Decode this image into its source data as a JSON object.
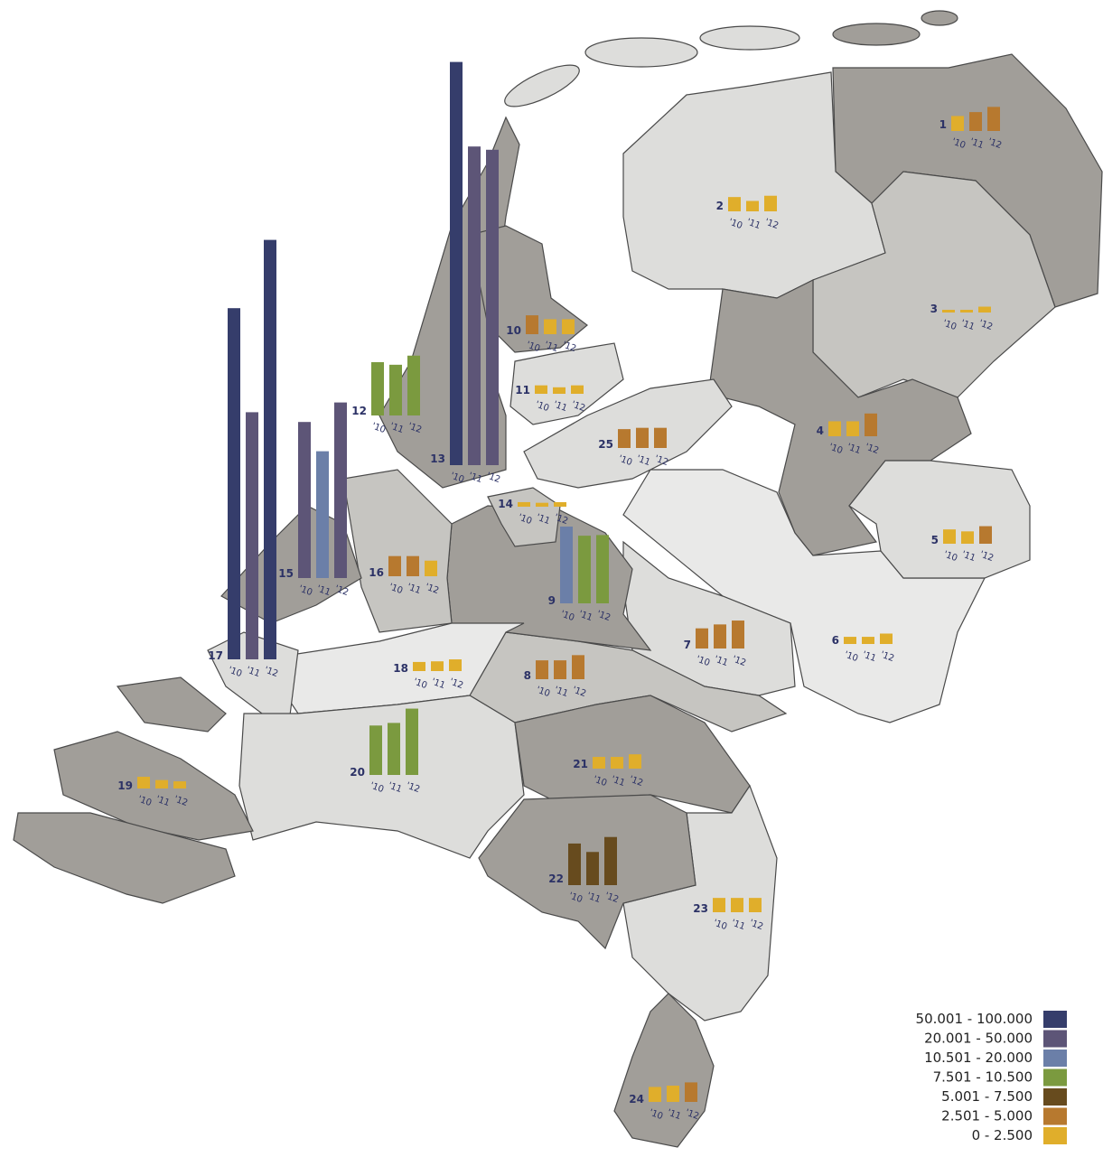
{
  "chart_data": {
    "type": "bar",
    "categories": [
      "'10",
      "'11",
      "'12"
    ],
    "regions": [
      {
        "label": "1",
        "values": [
          2300,
          2900,
          3700
        ]
      },
      {
        "label": "2",
        "values": [
          2200,
          1600,
          2400
        ]
      },
      {
        "label": "3",
        "values": [
          400,
          400,
          900
        ]
      },
      {
        "label": "4",
        "values": [
          2300,
          2300,
          3500
        ]
      },
      {
        "label": "5",
        "values": [
          2200,
          1900,
          2700
        ]
      },
      {
        "label": "6",
        "values": [
          1100,
          1100,
          1600
        ]
      },
      {
        "label": "7",
        "values": [
          3100,
          3700,
          4300
        ]
      },
      {
        "label": "8",
        "values": [
          2900,
          2900,
          3700
        ]
      },
      {
        "label": "9",
        "values": [
          11800,
          10400,
          10500
        ]
      },
      {
        "label": "10",
        "values": [
          2900,
          2300,
          2300
        ]
      },
      {
        "label": "11",
        "values": [
          1300,
          1000,
          1300
        ]
      },
      {
        "label": "12",
        "values": [
          8200,
          7800,
          9200
        ]
      },
      {
        "label": "13",
        "values": [
          62000,
          49000,
          48500
        ]
      },
      {
        "label": "14",
        "values": [
          700,
          600,
          700
        ]
      },
      {
        "label": "15",
        "values": [
          24000,
          19500,
          27000
        ]
      },
      {
        "label": "16",
        "values": [
          3100,
          3100,
          2400
        ]
      },
      {
        "label": "17",
        "values": [
          54000,
          38000,
          64500
        ]
      },
      {
        "label": "18",
        "values": [
          1400,
          1500,
          1800
        ]
      },
      {
        "label": "19",
        "values": [
          1800,
          1300,
          1100
        ]
      },
      {
        "label": "20",
        "values": [
          7600,
          8000,
          10200
        ]
      },
      {
        "label": "21",
        "values": [
          1800,
          1800,
          2200
        ]
      },
      {
        "label": "22",
        "values": [
          6400,
          5100,
          7400
        ]
      },
      {
        "label": "23",
        "values": [
          2200,
          2200,
          2200
        ]
      },
      {
        "label": "24",
        "values": [
          2300,
          2500,
          3000
        ]
      },
      {
        "label": "25",
        "values": [
          2900,
          3100,
          3100
        ]
      }
    ],
    "legend": [
      {
        "label": "50.001 - 100.000",
        "min": 50001,
        "max": 100000,
        "color": "#353d6b"
      },
      {
        "label": "20.001 - 50.000",
        "min": 20001,
        "max": 50000,
        "color": "#5d5577"
      },
      {
        "label": "10.501 - 20.000",
        "min": 10501,
        "max": 20000,
        "color": "#6b7fa8"
      },
      {
        "label": "7.501 - 10.500",
        "min": 7501,
        "max": 10500,
        "color": "#7b9a3f"
      },
      {
        "label": "5.001 - 7.500",
        "min": 5001,
        "max": 7500,
        "color": "#674b1e"
      },
      {
        "label": "2.501 - 5.000",
        "min": 2501,
        "max": 5000,
        "color": "#b7792f"
      },
      {
        "label": "0 - 2.500",
        "min": 0,
        "max": 2500,
        "color": "#e0ae2b"
      }
    ]
  }
}
